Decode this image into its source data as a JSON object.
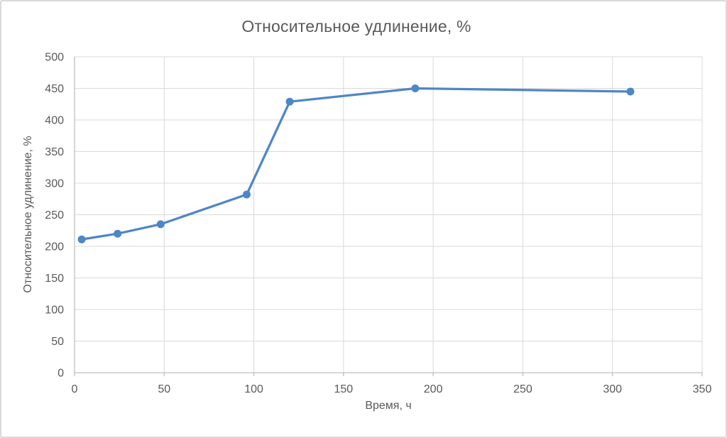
{
  "chart_data": {
    "type": "line",
    "title": "Относительное удлинение, %",
    "xlabel": "Время, ч",
    "ylabel": "Относительное удлинение, %",
    "x": [
      4,
      24,
      48,
      96,
      120,
      190,
      310
    ],
    "y": [
      211,
      220,
      235,
      282,
      429,
      450,
      445
    ],
    "xlim": [
      0,
      350
    ],
    "ylim": [
      0,
      500
    ],
    "xticks": [
      0,
      50,
      100,
      150,
      200,
      250,
      300,
      350
    ],
    "yticks": [
      0,
      50,
      100,
      150,
      200,
      250,
      300,
      350,
      400,
      450,
      500
    ],
    "grid": true,
    "legend": false,
    "marker": "circle",
    "line_color": "#4e86c6",
    "marker_color": "#4e86c6",
    "gridline_color": "#d9d9d9",
    "axis_color": "#bfbfbf",
    "text_color": "#595959",
    "background_color": "#ffffff"
  }
}
